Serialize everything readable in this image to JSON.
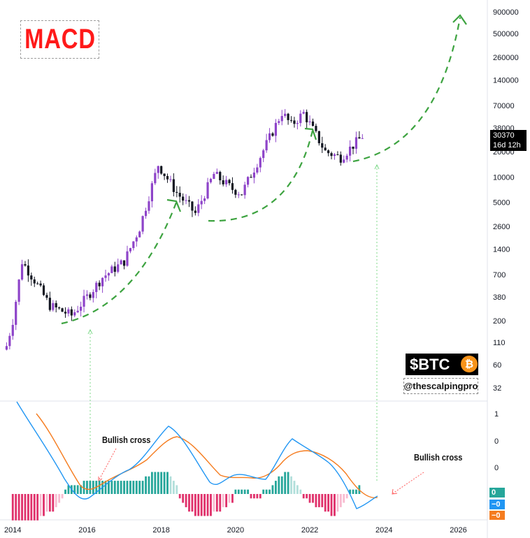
{
  "title": "MACD",
  "ticker": "$BTC",
  "coin_symbol": "₿",
  "handle": "@thescalpingpro",
  "price_badge": {
    "price": "30370",
    "countdown": "16d 12h"
  },
  "annotations": [
    "Bullish cross",
    "Bullish cross"
  ],
  "macd_badges": {
    "histogram": "0",
    "macd": "−0",
    "signal": "−0"
  },
  "colors": {
    "bull_candle": "#8e44c9",
    "bear_candle": "#131722",
    "projection": "#3da340",
    "macd_line": "#2196f3",
    "signal_line": "#f57c1f",
    "hist_up_strong": "#26a69a",
    "hist_up_weak": "#b2dfdb",
    "hist_down_strong": "#e0316b",
    "hist_down_weak": "#f8bbd0",
    "title": "#ff1a1a",
    "coin": "#f7931a"
  },
  "chart_data": [
    {
      "type": "candlestick",
      "scale": "log",
      "x_ticks": [
        "2014",
        "2016",
        "2018",
        "2020",
        "2022",
        "2024",
        "2026"
      ],
      "y_ticks": [
        900000,
        500000,
        260000,
        140000,
        70000,
        38000,
        20000,
        10000,
        5000,
        2600,
        1400,
        700,
        380,
        200,
        110,
        60,
        32
      ],
      "ylim": [
        32,
        900000
      ],
      "last_price": 30370,
      "series_monthly_close": [
        {
          "date": "2013-11",
          "close": 100
        },
        {
          "date": "2014-01",
          "close": 200
        },
        {
          "date": "2014-04",
          "close": 1000
        },
        {
          "date": "2014-08",
          "close": 600
        },
        {
          "date": "2015-01",
          "close": 300
        },
        {
          "date": "2015-08",
          "close": 230
        },
        {
          "date": "2016-01",
          "close": 380
        },
        {
          "date": "2016-06",
          "close": 650
        },
        {
          "date": "2017-01",
          "close": 1000
        },
        {
          "date": "2017-06",
          "close": 2500
        },
        {
          "date": "2017-12",
          "close": 14000
        },
        {
          "date": "2018-06",
          "close": 6500
        },
        {
          "date": "2018-12",
          "close": 3700
        },
        {
          "date": "2019-06",
          "close": 10800
        },
        {
          "date": "2019-12",
          "close": 7200
        },
        {
          "date": "2020-03",
          "close": 6400
        },
        {
          "date": "2020-12",
          "close": 29000
        },
        {
          "date": "2021-04",
          "close": 58000
        },
        {
          "date": "2021-07",
          "close": 41000
        },
        {
          "date": "2021-11",
          "close": 57000
        },
        {
          "date": "2022-06",
          "close": 20000
        },
        {
          "date": "2022-11",
          "close": 17000
        },
        {
          "date": "2023-06",
          "close": 30370
        }
      ],
      "projection_curves": [
        {
          "from": "2015-01",
          "to": "2017-12"
        },
        {
          "from": "2018-12",
          "to": "2021-04"
        },
        {
          "from": "2022-11",
          "to": "2025-10"
        }
      ]
    },
    {
      "type": "macd",
      "lines": [
        "MACD",
        "Signal"
      ],
      "y_ticks": [
        "1",
        "0",
        "0"
      ],
      "histogram_monthly": [
        -6,
        -6,
        -6,
        -6,
        -6,
        -6,
        -6,
        -6,
        -6,
        -5,
        -5,
        -4,
        -4,
        -4,
        -3,
        -2,
        -1,
        1,
        2,
        2,
        2,
        2,
        2,
        3,
        3,
        3,
        3,
        3,
        3,
        3,
        3,
        3,
        3,
        3,
        3,
        3,
        3,
        3,
        3,
        3,
        3,
        3,
        3,
        4,
        4,
        5,
        5,
        5,
        5,
        5,
        5,
        4,
        3,
        2,
        -1,
        -2,
        -3,
        -4,
        -4,
        -5,
        -5,
        -5,
        -5,
        -5,
        -5,
        -4,
        -4,
        -4,
        -3,
        -3,
        -2,
        -2,
        1,
        1,
        1,
        1,
        1,
        -1,
        -1,
        -1,
        -1,
        1,
        1,
        1,
        2,
        3,
        4,
        4,
        5,
        5,
        4,
        3,
        2,
        1,
        -1,
        -1,
        -2,
        -2,
        -3,
        -3,
        -3,
        -4,
        -4,
        -5,
        -5,
        -4,
        -3,
        -2,
        -1,
        1,
        1,
        1,
        2
      ]
    }
  ]
}
